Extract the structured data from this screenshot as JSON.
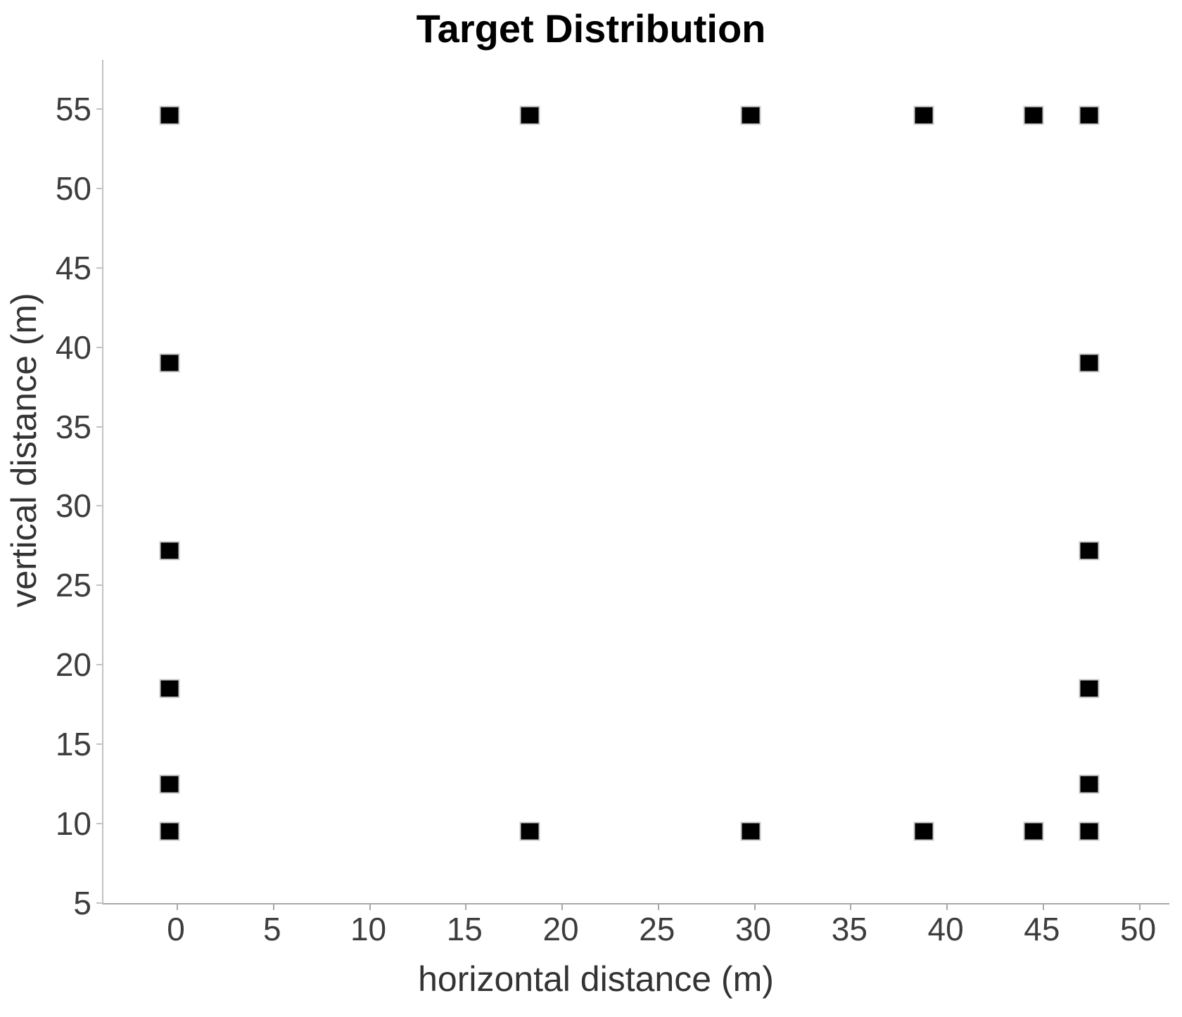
{
  "chart_data": {
    "type": "scatter",
    "title": "Target Distribution",
    "xlabel": "horizontal distance (m)",
    "ylabel": "vertical distance (m)",
    "xlim": [
      -3.84,
      51.55
    ],
    "ylim": [
      5,
      58.1
    ],
    "xticks": [
      0,
      5,
      10,
      15,
      20,
      25,
      30,
      35,
      40,
      45,
      50
    ],
    "yticks": [
      5,
      10,
      15,
      20,
      25,
      30,
      35,
      40,
      45,
      50,
      55
    ],
    "grid": false,
    "legend": "none",
    "marker": {
      "shape": "square",
      "fill_color": "#000000",
      "edge_color": "#c9c9c9"
    },
    "colors": {
      "title": "#000000",
      "tick_text": "#3d3d3d",
      "axis_label_text": "#333333",
      "spine": "#a8a8a8"
    },
    "points": [
      {
        "x": -0.4,
        "y": 54.6
      },
      {
        "x": 18.3,
        "y": 54.6
      },
      {
        "x": 29.8,
        "y": 54.6
      },
      {
        "x": 38.8,
        "y": 54.6
      },
      {
        "x": 44.5,
        "y": 54.6
      },
      {
        "x": 47.4,
        "y": 54.6
      },
      {
        "x": -0.4,
        "y": 39.0
      },
      {
        "x": 47.4,
        "y": 39.0
      },
      {
        "x": -0.4,
        "y": 27.2
      },
      {
        "x": 47.4,
        "y": 27.2
      },
      {
        "x": -0.4,
        "y": 18.5
      },
      {
        "x": 47.4,
        "y": 18.5
      },
      {
        "x": -0.4,
        "y": 12.5
      },
      {
        "x": 47.4,
        "y": 12.5
      },
      {
        "x": -0.4,
        "y": 9.5
      },
      {
        "x": 18.3,
        "y": 9.5
      },
      {
        "x": 29.8,
        "y": 9.5
      },
      {
        "x": 38.8,
        "y": 9.5
      },
      {
        "x": 44.5,
        "y": 9.5
      },
      {
        "x": 47.4,
        "y": 9.5
      }
    ]
  }
}
